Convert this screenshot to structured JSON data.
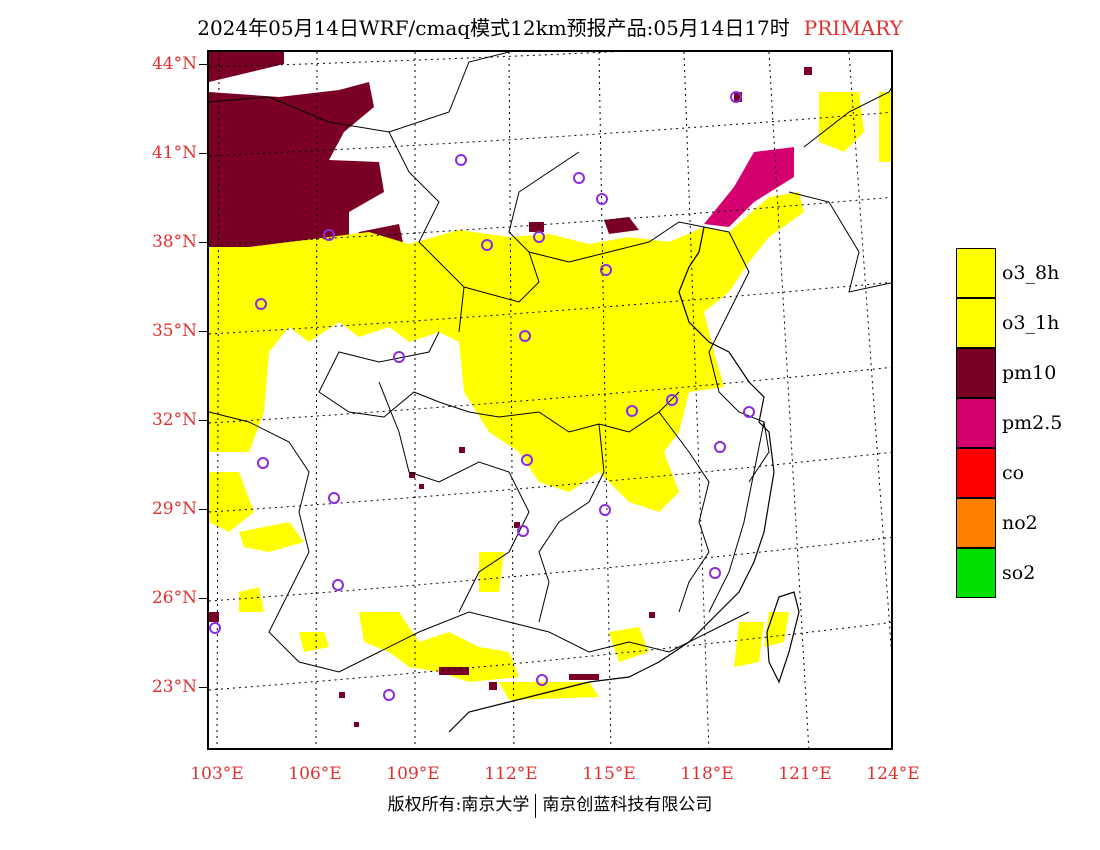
{
  "title": {
    "text": "2024年05月14日WRF/cmaq模式12km预报产品:05月14日17时",
    "tag": "PRIMARY"
  },
  "axes": {
    "lat_labels": [
      "44°N",
      "41°N",
      "38°N",
      "35°N",
      "32°N",
      "29°N",
      "26°N",
      "23°N"
    ],
    "lon_labels": [
      "103°E",
      "106°E",
      "109°E",
      "112°E",
      "115°E",
      "118°E",
      "121°E",
      "124°E"
    ]
  },
  "legend": {
    "items": [
      {
        "label": "o3_8h",
        "color": "#ffff00"
      },
      {
        "label": "o3_1h",
        "color": "#ffff00"
      },
      {
        "label": "pm10",
        "color": "#7b0026"
      },
      {
        "label": "pm2.5",
        "color": "#d4006e"
      },
      {
        "label": "co",
        "color": "#ff0000"
      },
      {
        "label": "no2",
        "color": "#ff7f00"
      },
      {
        "label": "so2",
        "color": "#00e000"
      }
    ]
  },
  "credit": {
    "left": "版权所有:南京大学",
    "right": "南京创蓝科技有限公司"
  },
  "colors": {
    "title": "#000000",
    "tag": "#e03030",
    "axis_labels": "#e03030",
    "station_marker": "#8a2be2"
  }
}
